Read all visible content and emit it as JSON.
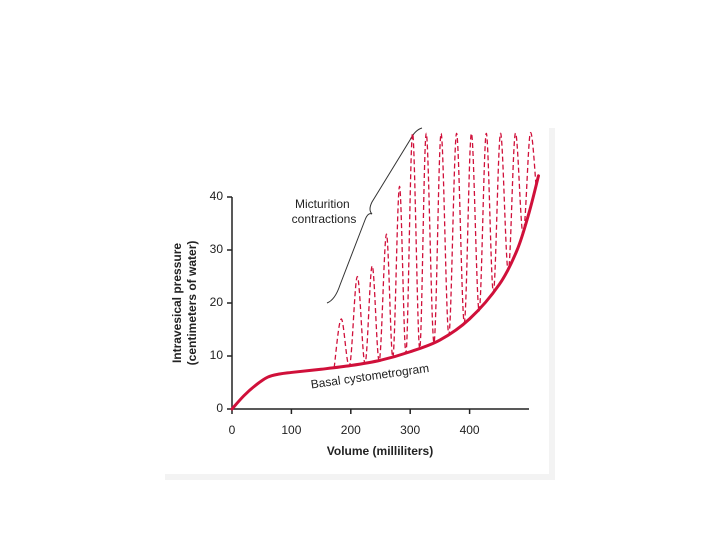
{
  "chart_data": {
    "type": "line",
    "xlabel": "Volume (milliliters)",
    "ylabel": [
      "Intravesical pressure",
      "(centimeters of water)"
    ],
    "xlim": [
      0,
      500
    ],
    "xticks": [
      0,
      100,
      200,
      300,
      400
    ],
    "ylim": [
      0,
      40
    ],
    "yticks": [
      0,
      10,
      20,
      30,
      40
    ],
    "series": [
      {
        "name": "Basal cystometrogram",
        "color": "#d0103a",
        "line_style": "solid",
        "x": [
          0,
          20,
          40,
          60,
          80,
          100,
          150,
          200,
          250,
          300,
          350,
          400,
          450,
          480,
          500,
          516
        ],
        "values": [
          0,
          2.5,
          4.5,
          6,
          6.6,
          6.9,
          7.5,
          8.2,
          9.2,
          10.8,
          13,
          17,
          23.5,
          30,
          37,
          44
        ]
      },
      {
        "name": "Micturition contractions",
        "color": "#d0103a",
        "line_style": "dashed",
        "x": [
          172,
          184,
          198,
          211,
          224,
          236,
          248,
          260,
          271,
          282,
          293,
          304,
          316,
          327,
          340,
          352,
          365,
          378,
          391,
          403,
          416,
          428,
          440,
          452,
          465,
          477,
          490,
          502,
          512
        ],
        "values": [
          7.8,
          17,
          8.2,
          25,
          8.6,
          27,
          9.1,
          33,
          9.8,
          42,
          10.6,
          52,
          11.4,
          52,
          12.5,
          52,
          14,
          52,
          16.3,
          52,
          18.5,
          52,
          22,
          52,
          26,
          52,
          33,
          52,
          42
        ]
      }
    ]
  }
}
